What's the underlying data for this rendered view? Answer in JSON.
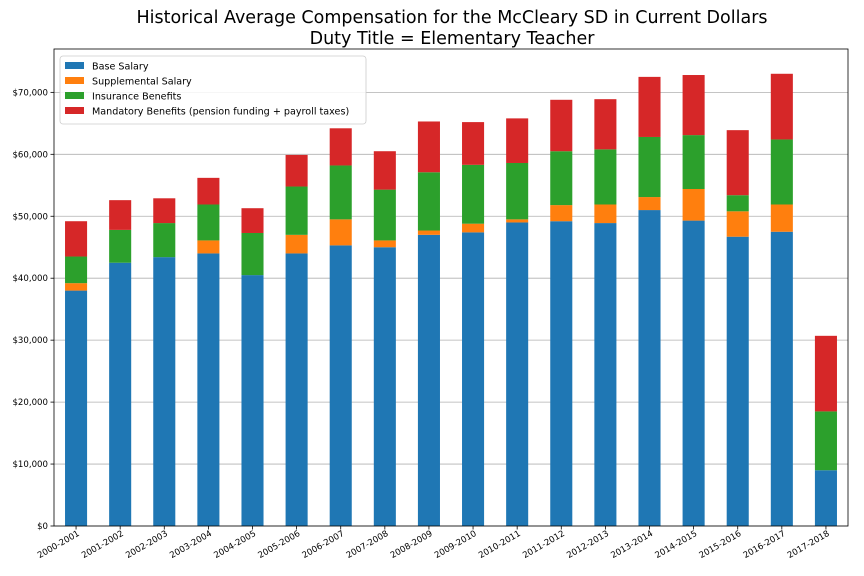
{
  "chart_data": {
    "type": "bar",
    "stacked": true,
    "title": [
      "Historical Average Compensation for the McCleary SD in Current Dollars",
      "Duty Title = Elementary Teacher"
    ],
    "xlabel": "",
    "ylabel": "",
    "ylim": [
      0,
      77000
    ],
    "yticks": [
      0,
      10000,
      20000,
      30000,
      40000,
      50000,
      60000,
      70000
    ],
    "ytick_labels": [
      "$0",
      "$10,000",
      "$20,000",
      "$30,000",
      "$40,000",
      "$50,000",
      "$60,000",
      "$70,000"
    ],
    "grid": "horizontal",
    "legend_position": "top-left",
    "categories": [
      "2000-2001",
      "2001-2002",
      "2002-2003",
      "2003-2004",
      "2004-2005",
      "2005-2006",
      "2006-2007",
      "2007-2008",
      "2008-2009",
      "2009-2010",
      "2010-2011",
      "2011-2012",
      "2012-2013",
      "2013-2014",
      "2014-2015",
      "2015-2016",
      "2016-2017",
      "2017-2018"
    ],
    "series": [
      {
        "name": "Base Salary",
        "color": "#1f77b4",
        "values": [
          38000,
          42500,
          43400,
          44000,
          40500,
          44000,
          45300,
          45000,
          47000,
          47400,
          49000,
          49200,
          48900,
          51000,
          49300,
          46700,
          47500,
          9000
        ]
      },
      {
        "name": "Supplemental Salary",
        "color": "#ff7f0e",
        "values": [
          1200,
          0,
          0,
          2100,
          0,
          3000,
          4200,
          1100,
          700,
          1400,
          500,
          2600,
          3000,
          2100,
          5100,
          4100,
          4400,
          0
        ]
      },
      {
        "name": "Insurance Benefits",
        "color": "#2ca02c",
        "values": [
          4300,
          5300,
          5500,
          5800,
          6800,
          7800,
          8700,
          8200,
          9400,
          9500,
          9100,
          8700,
          8900,
          9700,
          8700,
          2600,
          10500,
          9500
        ]
      },
      {
        "name": "Mandatory Benefits (pension funding + payroll taxes)",
        "color": "#d62728",
        "values": [
          5700,
          4800,
          4000,
          4300,
          4000,
          5100,
          6000,
          6200,
          8200,
          6900,
          7200,
          8300,
          8100,
          9700,
          9700,
          10500,
          10600,
          12200
        ]
      }
    ]
  }
}
